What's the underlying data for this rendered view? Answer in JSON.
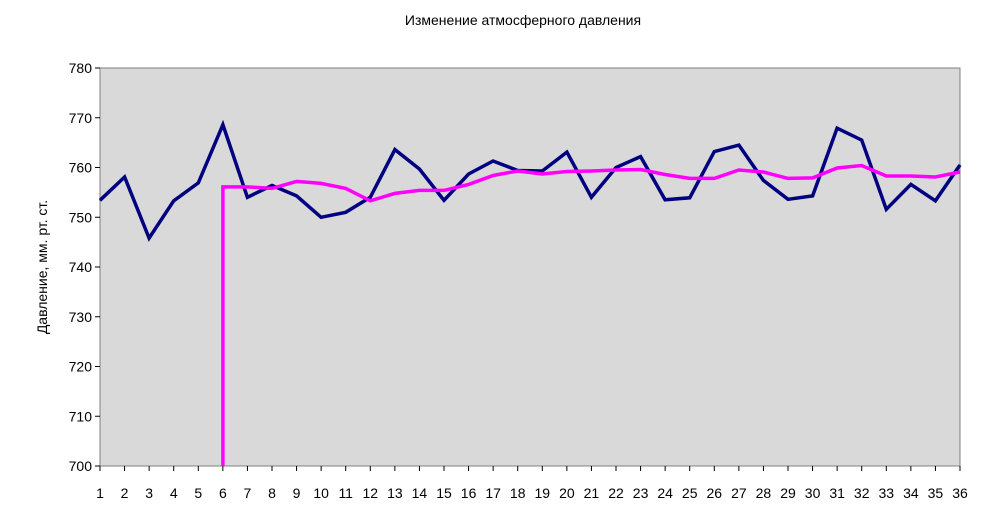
{
  "chart_data": {
    "type": "line",
    "title": "Изменение атмосферного давления",
    "xlabel": "",
    "ylabel": "Давление, мм. рт. ст.",
    "ylim": [
      700,
      780
    ],
    "yticks": [
      "700",
      "710",
      "720",
      "730",
      "740",
      "750",
      "760",
      "770",
      "780"
    ],
    "x": [
      "1",
      "2",
      "3",
      "4",
      "5",
      "6",
      "7",
      "8",
      "9",
      "10",
      "11",
      "12",
      "13",
      "14",
      "15",
      "16",
      "17",
      "18",
      "19",
      "20",
      "21",
      "22",
      "23",
      "24",
      "25",
      "26",
      "27",
      "28",
      "29",
      "30",
      "31",
      "32",
      "33",
      "34",
      "35",
      "36"
    ],
    "grid": false,
    "legend": "none",
    "plot_background": "#d9d9d9",
    "series": [
      {
        "color": "#000080",
        "values": [
          753.4,
          758.1,
          745.8,
          753.3,
          756.9,
          768.6,
          754.0,
          756.4,
          754.3,
          750.0,
          751.0,
          754.0,
          763.6,
          759.7,
          753.4,
          758.7,
          761.3,
          759.4,
          759.3,
          763.1,
          754.0,
          760.0,
          762.2,
          753.5,
          753.9,
          763.2,
          764.5,
          757.4,
          753.6,
          754.3,
          767.9,
          765.5,
          751.6,
          756.6,
          753.3,
          760.5
        ]
      },
      {
        "color": "#ff00ff",
        "start_from_axis": 700,
        "values": [
          null,
          null,
          null,
          null,
          null,
          756.1,
          756.1,
          755.8,
          757.2,
          756.8,
          755.8,
          753.3,
          754.8,
          755.4,
          755.4,
          756.6,
          758.4,
          759.3,
          758.7,
          759.2,
          759.3,
          759.5,
          759.6,
          758.6,
          757.8,
          757.8,
          759.5,
          759.1,
          757.8,
          757.9,
          759.9,
          760.4,
          758.3,
          758.3,
          758.1,
          759.1
        ]
      }
    ]
  }
}
